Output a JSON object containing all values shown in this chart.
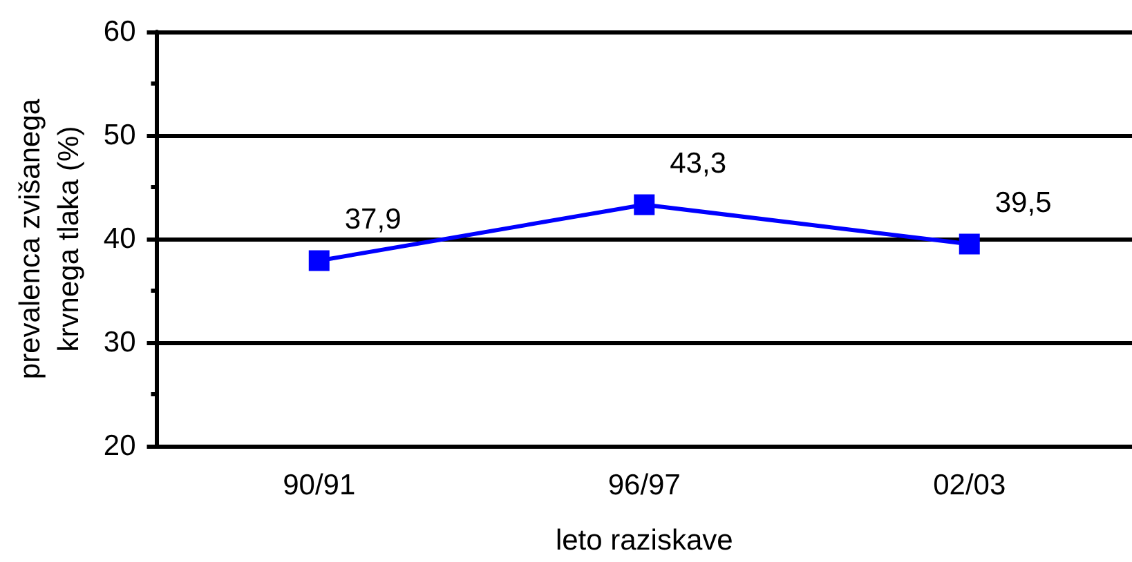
{
  "chart_data": {
    "type": "line",
    "xlabel": "leto raziskave",
    "ylabel": "prevalenca zvišanega krvnega tlaka (%)",
    "categories": [
      "90/91",
      "96/97",
      "02/03"
    ],
    "series": [
      {
        "color": "#0000ff",
        "values": [
          37.9,
          43.3,
          39.5
        ],
        "value_labels": [
          "37,9",
          "43,3",
          "39,5"
        ]
      }
    ],
    "ylim": [
      20,
      60
    ],
    "yticks": [
      20,
      {
        "value": 25,
        "label": null
      },
      30,
      {
        "value": 35,
        "label": null
      },
      40,
      {
        "value": 45,
        "label": null
      },
      50,
      {
        "value": 55,
        "label": null
      },
      60
    ],
    "grid": "y",
    "marker": "square",
    "line_style": "solid"
  }
}
